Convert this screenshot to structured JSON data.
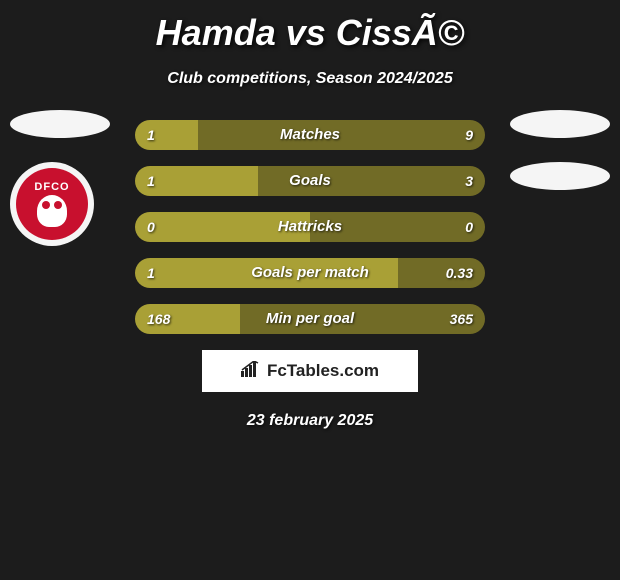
{
  "title": "Hamda vs CissÃ©",
  "subtitle": "Club competitions, Season 2024/2025",
  "date": "23 february 2025",
  "footer_brand": "FcTables.com",
  "club_logo_text": "DFCO",
  "colors": {
    "left_fill": "#a9a036",
    "right_fill": "#716b26",
    "left_empty": "#a9a036",
    "right_empty": "#716b26",
    "background": "#1c1c1c",
    "ellipse": "#f5f5f5",
    "logo_red": "#c8102e"
  },
  "bars": [
    {
      "label": "Matches",
      "left_val": "1",
      "right_val": "9",
      "left_pct": 18,
      "right_pct": 82,
      "left_color": "#a9a036",
      "right_color": "#716b26"
    },
    {
      "label": "Goals",
      "left_val": "1",
      "right_val": "3",
      "left_pct": 35,
      "right_pct": 65,
      "left_color": "#a9a036",
      "right_color": "#716b26"
    },
    {
      "label": "Hattricks",
      "left_val": "0",
      "right_val": "0",
      "left_pct": 50,
      "right_pct": 50,
      "left_color": "#a9a036",
      "right_color": "#716b26"
    },
    {
      "label": "Goals per match",
      "left_val": "1",
      "right_val": "0.33",
      "left_pct": 75,
      "right_pct": 25,
      "left_color": "#a9a036",
      "right_color": "#716b26"
    },
    {
      "label": "Min per goal",
      "left_val": "168",
      "right_val": "365",
      "left_pct": 30,
      "right_pct": 70,
      "left_color": "#a9a036",
      "right_color": "#716b26"
    }
  ]
}
